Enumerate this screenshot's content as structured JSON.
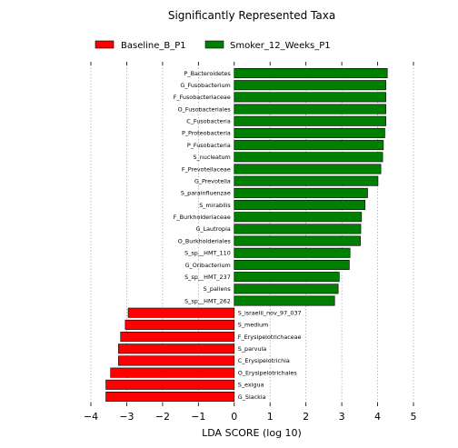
{
  "chart_data": {
    "type": "bar",
    "orientation": "horizontal",
    "title": "Significantly Represented Taxa",
    "xlabel": "LDA SCORE (log 10)",
    "ylabel": "",
    "xlim": [
      -4,
      5
    ],
    "xticks": [
      "−4",
      "−3",
      "−2",
      "−1",
      "0",
      "1",
      "2",
      "3",
      "4",
      "5"
    ],
    "grid": "vertical dotted",
    "legend_position": "top",
    "series": [
      {
        "name": "Baseline_B_P1",
        "color": "#ff0000"
      },
      {
        "name": "Smoker_12_Weeks_P1",
        "color": "#008000"
      }
    ],
    "bars": [
      {
        "label": "P_Bacteroidetes",
        "value": 4.27,
        "series": "Smoker_12_Weeks_P1"
      },
      {
        "label": "G_Fusobacterium",
        "value": 4.23,
        "series": "Smoker_12_Weeks_P1"
      },
      {
        "label": "F_Fusobacteriaceae",
        "value": 4.23,
        "series": "Smoker_12_Weeks_P1"
      },
      {
        "label": "O_Fusobacteriales",
        "value": 4.23,
        "series": "Smoker_12_Weeks_P1"
      },
      {
        "label": "C_Fusobacteria",
        "value": 4.23,
        "series": "Smoker_12_Weeks_P1"
      },
      {
        "label": "P_Proteobacteria",
        "value": 4.2,
        "series": "Smoker_12_Weeks_P1"
      },
      {
        "label": "P_Fusobacteria",
        "value": 4.16,
        "series": "Smoker_12_Weeks_P1"
      },
      {
        "label": "S_nucleatum",
        "value": 4.14,
        "series": "Smoker_12_Weeks_P1"
      },
      {
        "label": "F_Prevotellaceae",
        "value": 4.09,
        "series": "Smoker_12_Weeks_P1"
      },
      {
        "label": "G_Prevotella",
        "value": 4.01,
        "series": "Smoker_12_Weeks_P1"
      },
      {
        "label": "S_parainfluenzae",
        "value": 3.72,
        "series": "Smoker_12_Weeks_P1"
      },
      {
        "label": "S_mirabilis",
        "value": 3.65,
        "series": "Smoker_12_Weeks_P1"
      },
      {
        "label": "F_Burkholderiaceae",
        "value": 3.55,
        "series": "Smoker_12_Weeks_P1"
      },
      {
        "label": "G_Lautropia",
        "value": 3.53,
        "series": "Smoker_12_Weeks_P1"
      },
      {
        "label": "O_Burkholderiales",
        "value": 3.52,
        "series": "Smoker_12_Weeks_P1"
      },
      {
        "label": "S_sp__HMT_110",
        "value": 3.23,
        "series": "Smoker_12_Weeks_P1"
      },
      {
        "label": "G_Oribacterium",
        "value": 3.21,
        "series": "Smoker_12_Weeks_P1"
      },
      {
        "label": "S_sp__HMT_237",
        "value": 2.93,
        "series": "Smoker_12_Weeks_P1"
      },
      {
        "label": "S_pallens",
        "value": 2.9,
        "series": "Smoker_12_Weeks_P1"
      },
      {
        "label": "S_sp__HMT_262",
        "value": 2.8,
        "series": "Smoker_12_Weeks_P1"
      },
      {
        "label": "S_israelii_nov_97_037",
        "value": -2.96,
        "series": "Baseline_B_P1"
      },
      {
        "label": "S_medium",
        "value": -3.04,
        "series": "Baseline_B_P1"
      },
      {
        "label": "F_Erysipelotrichaceae",
        "value": -3.17,
        "series": "Baseline_B_P1"
      },
      {
        "label": "S_parvula",
        "value": -3.23,
        "series": "Baseline_B_P1"
      },
      {
        "label": "C_Erysipelotrichia",
        "value": -3.23,
        "series": "Baseline_B_P1"
      },
      {
        "label": "O_Erysipelotrichales",
        "value": -3.45,
        "series": "Baseline_B_P1"
      },
      {
        "label": "S_exigua",
        "value": -3.58,
        "series": "Baseline_B_P1"
      },
      {
        "label": "G_Slackia",
        "value": -3.58,
        "series": "Baseline_B_P1"
      }
    ]
  }
}
